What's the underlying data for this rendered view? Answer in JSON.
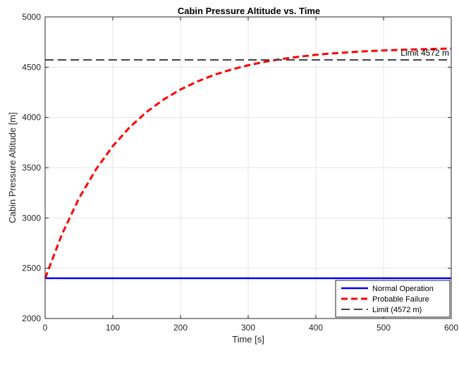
{
  "chart_data": {
    "type": "line",
    "title": "Cabin Pressure Altitude vs. Time",
    "xlabel": "Time [s]",
    "ylabel": "Cabin Pressure Altitude [m]",
    "xlim": [
      0,
      600
    ],
    "ylim": [
      2000,
      5000
    ],
    "xticks": [
      0,
      100,
      200,
      300,
      400,
      500,
      600
    ],
    "yticks": [
      2000,
      2500,
      3000,
      3500,
      4000,
      4500,
      5000
    ],
    "grid": true,
    "legend_position": "bottom-right",
    "series": [
      {
        "name": "Normal Operation",
        "color": "#0000ff",
        "style": "solid",
        "x": [
          0,
          600
        ],
        "y": [
          2400,
          2400
        ]
      },
      {
        "name": "Probable Failure",
        "color": "#ff0000",
        "style": "dashed",
        "x": [
          0,
          25,
          50,
          75,
          100,
          125,
          150,
          175,
          200,
          225,
          250,
          275,
          300,
          325,
          350,
          375,
          400,
          425,
          450,
          475,
          500,
          525,
          550,
          575,
          600
        ],
        "y": [
          2400,
          2840,
          3195,
          3482,
          3715,
          3903,
          4055,
          4178,
          4278,
          4358,
          4424,
          4476,
          4519,
          4554,
          4582,
          4604,
          4623,
          4637,
          4649,
          4659,
          4666,
          4673,
          4678,
          4682,
          4685
        ]
      },
      {
        "name": "Limit (4572 m)",
        "color": "#444444",
        "style": "dashed",
        "x": [
          0,
          600
        ],
        "y": [
          4572,
          4572
        ]
      }
    ],
    "annotations": [
      {
        "text": "Limit 4572 m",
        "x": 600,
        "y": 4572,
        "anchor": "above-right"
      }
    ]
  }
}
